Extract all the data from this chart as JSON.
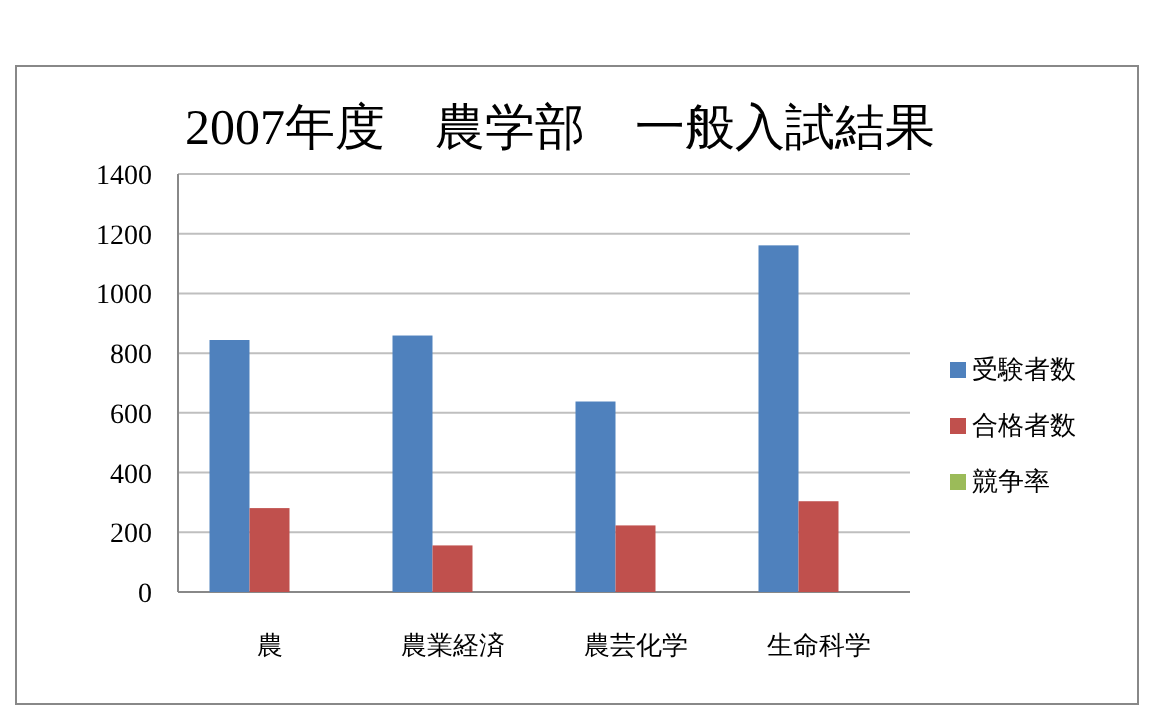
{
  "chart_data": {
    "type": "bar",
    "title": "2007年度　農学部　一般入試結果",
    "categories": [
      "農",
      "農業経済",
      "農芸化学",
      "生命科学"
    ],
    "series": [
      {
        "name": "受験者数",
        "color": "#4f81bd",
        "values": [
          844,
          859,
          638,
          1161
        ]
      },
      {
        "name": "合格者数",
        "color": "#c0504d",
        "values": [
          281,
          156,
          223,
          304
        ]
      },
      {
        "name": "競争率",
        "color": "#9bbb59",
        "values": [
          null,
          null,
          null,
          null
        ]
      }
    ],
    "ylim": [
      0,
      1400
    ],
    "yticks": [
      0,
      200,
      400,
      600,
      800,
      1000,
      1200,
      1400
    ],
    "grid": "y",
    "legend": "right"
  }
}
